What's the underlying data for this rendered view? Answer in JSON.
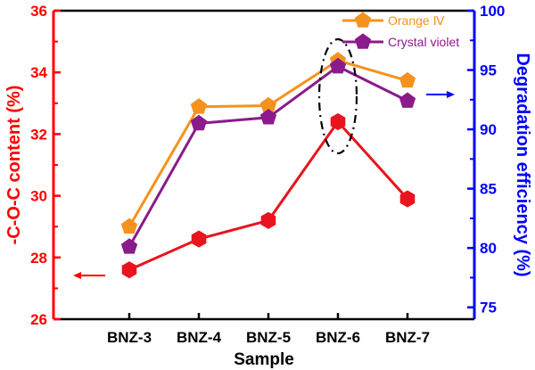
{
  "chart_data": {
    "type": "line",
    "xlabel": "Sample",
    "categories": [
      "BNZ-3",
      "BNZ-4",
      "BNZ-5",
      "BNZ-6",
      "BNZ-7"
    ],
    "left_axis": {
      "label": "-C-O-C content (%)",
      "ylim": [
        26,
        36
      ],
      "ticks": [
        26,
        28,
        30,
        32,
        34,
        36
      ],
      "color": "#ff0000"
    },
    "right_axis": {
      "label": "Degradation efficiency (%)",
      "ylim": [
        74,
        100
      ],
      "ticks": [
        75,
        80,
        85,
        90,
        95,
        100
      ],
      "color": "#0000ff"
    },
    "series": [
      {
        "name": "-C-O-C content",
        "axis": "left",
        "color": "#e8141e",
        "marker": "hexagon",
        "values": [
          27.6,
          28.6,
          29.2,
          32.4,
          29.9
        ]
      },
      {
        "name": "Orange IV",
        "axis": "right",
        "color": "#f5921e",
        "marker": "pentagon",
        "values": [
          81.8,
          91.9,
          92.0,
          95.8,
          94.1
        ]
      },
      {
        "name": "Crystal violet",
        "axis": "right",
        "color": "#8b1a8b",
        "marker": "pentagon",
        "values": [
          80.1,
          90.5,
          91.0,
          95.3,
          92.4
        ]
      }
    ],
    "legend": {
      "position": "top-right",
      "entries": [
        "Orange Ⅳ",
        "Crystal violet"
      ]
    },
    "annotation": "dashed ellipse around BNZ-6"
  }
}
